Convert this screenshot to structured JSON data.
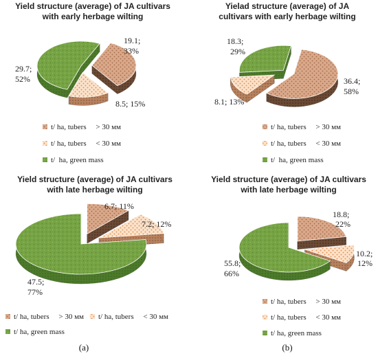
{
  "figure": {
    "panel_labels": [
      "(a)",
      "(b)"
    ]
  },
  "colors": {
    "tubers_large": "#d9a88a",
    "tubers_small": "#f6c9a2",
    "green_mass": "#76a344"
  },
  "chart_data": [
    {
      "type": "pie",
      "style": "3d-exploded",
      "title": [
        "Yield structure  (average) of JA cultivars",
        "with early herbage wilting"
      ],
      "legend_position": "bottom",
      "series": [
        {
          "name": "t/ ha, tubers     > 30 мм",
          "value": 19.1,
          "percent": 33,
          "label": [
            "19.1;",
            "33%"
          ]
        },
        {
          "name": "t/ ha, tubers     < 30 мм",
          "value": 8.5,
          "percent": 15,
          "label": [
            "8.5; 15%"
          ]
        },
        {
          "name": "t/  ha, green mass",
          "value": 29.7,
          "percent": 52,
          "label": [
            "29.7;",
            "52%"
          ]
        }
      ]
    },
    {
      "type": "pie",
      "style": "3d-exploded",
      "title": [
        "Yielad structure  (average) of JA",
        "cultivars with early herbage wilting"
      ],
      "legend_position": "bottom",
      "series": [
        {
          "name": "t/ ha, tubers     > 30 мм",
          "value": 36.4,
          "percent": 58,
          "label": [
            "36.4;",
            "58%"
          ]
        },
        {
          "name": "t/ ha, tubers     < 30 мм",
          "value": 8.1,
          "percent": 13,
          "label": [
            "8.1; 13%"
          ]
        },
        {
          "name": "t/  ha, green mass",
          "value": 18.3,
          "percent": 29,
          "label": [
            "18.3;",
            "29%"
          ]
        }
      ]
    },
    {
      "type": "pie",
      "style": "3d-exploded",
      "title": [
        "Yield structure  (average) of JA cultivars",
        "with late herbage wilting"
      ],
      "legend_position": "bottom",
      "series": [
        {
          "name": "t/ ha, tubers     > 30 мм",
          "value": 6.7,
          "percent": 11,
          "label": [
            "6.7; 11%"
          ]
        },
        {
          "name": "t/ ha, tubers     < 30 мм",
          "value": 7.2,
          "percent": 12,
          "label": [
            "7.2; 12%"
          ]
        },
        {
          "name": "t/ ha, green mass",
          "value": 47.5,
          "percent": 77,
          "label": [
            "47.5;",
            "77%"
          ]
        }
      ]
    },
    {
      "type": "pie",
      "style": "3d-exploded",
      "title": [
        "Yield structure  (average) of JA cultivars",
        "with late herbage wilting"
      ],
      "legend_position": "bottom",
      "series": [
        {
          "name": "t/ ha, tubers     > 30 мм",
          "value": 18.8,
          "percent": 22,
          "label": [
            "18.8;",
            "22%"
          ]
        },
        {
          "name": "t/ ha, tubers     < 30 мм",
          "value": 10.2,
          "percent": 12,
          "label": [
            "10.2;",
            "12%"
          ]
        },
        {
          "name": "t/ ha, green mass",
          "value": 55.8,
          "percent": 66,
          "label": [
            "55.8;",
            "66%"
          ]
        }
      ]
    }
  ]
}
